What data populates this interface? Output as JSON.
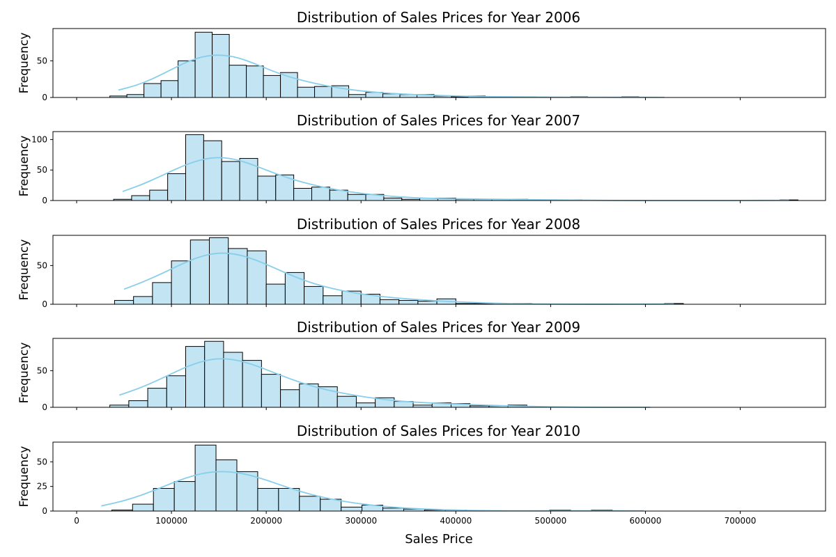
{
  "chart_data": {
    "type": "histogram",
    "xlabel": "Sales Price",
    "ylabel": "Frequency",
    "xlim": [
      -25000,
      790000
    ],
    "x_ticks": [
      0,
      100000,
      200000,
      300000,
      400000,
      500000,
      600000,
      700000
    ],
    "x_tick_labels": [
      "0",
      "100000",
      "200000",
      "300000",
      "400000",
      "500000",
      "600000",
      "700000"
    ],
    "colors": {
      "bar_fill": "#c2e4f3",
      "bar_edge": "#000000",
      "kde": "#87ceeb"
    },
    "panels": [
      {
        "title": "Distribution of Sales Prices for Year 2006",
        "ylim": [
          0,
          94
        ],
        "y_ticks": [
          0,
          50
        ],
        "bin_start": 35000,
        "bin_width": 18000,
        "counts": [
          2,
          4,
          19,
          23,
          50,
          89,
          86,
          44,
          43,
          30,
          34,
          14,
          15,
          16,
          4,
          7,
          5,
          4,
          4,
          2,
          1,
          2,
          0,
          1,
          1,
          0,
          0,
          1,
          0,
          0,
          1,
          0,
          0
        ]
      },
      {
        "title": "Distribution of Sales Prices for Year 2007",
        "ylim": [
          0,
          113
        ],
        "y_ticks": [
          0,
          50,
          100
        ],
        "bin_start": 39000,
        "bin_width": 19000,
        "counts": [
          2,
          8,
          17,
          44,
          108,
          98,
          64,
          69,
          40,
          42,
          20,
          22,
          17,
          10,
          10,
          4,
          2,
          4,
          4,
          2,
          2,
          2,
          2,
          1,
          1,
          1,
          0,
          0,
          0,
          0,
          0,
          0,
          0,
          0,
          0,
          0,
          0,
          1
        ]
      },
      {
        "title": "Distribution of Sales Prices for Year 2008",
        "ylim": [
          0,
          89
        ],
        "y_ticks": [
          0,
          50
        ],
        "bin_start": 40000,
        "bin_width": 20000,
        "counts": [
          5,
          10,
          28,
          56,
          83,
          86,
          72,
          69,
          26,
          41,
          23,
          11,
          17,
          13,
          6,
          5,
          4,
          7,
          1,
          1,
          0,
          1,
          0,
          0,
          0,
          0,
          0,
          0,
          0,
          1
        ]
      },
      {
        "title": "Distribution of Sales Prices for Year 2009",
        "ylim": [
          0,
          94
        ],
        "y_ticks": [
          0,
          50
        ],
        "bin_start": 35000,
        "bin_width": 20000,
        "counts": [
          3,
          9,
          26,
          43,
          83,
          90,
          75,
          64,
          45,
          24,
          32,
          28,
          15,
          6,
          13,
          8,
          3,
          6,
          5,
          2,
          2,
          3,
          0,
          0,
          0,
          0,
          0,
          0,
          0
        ]
      },
      {
        "title": "Distribution of Sales Prices for Year 2010",
        "ylim": [
          0,
          70
        ],
        "y_ticks": [
          0,
          25,
          50
        ],
        "bin_start": 15000,
        "bin_width": 22000,
        "counts": [
          0,
          1,
          7,
          23,
          30,
          67,
          52,
          40,
          23,
          23,
          15,
          12,
          4,
          6,
          3,
          2,
          1,
          1,
          0,
          0,
          0,
          0,
          1,
          0,
          1,
          0,
          0
        ]
      }
    ]
  }
}
